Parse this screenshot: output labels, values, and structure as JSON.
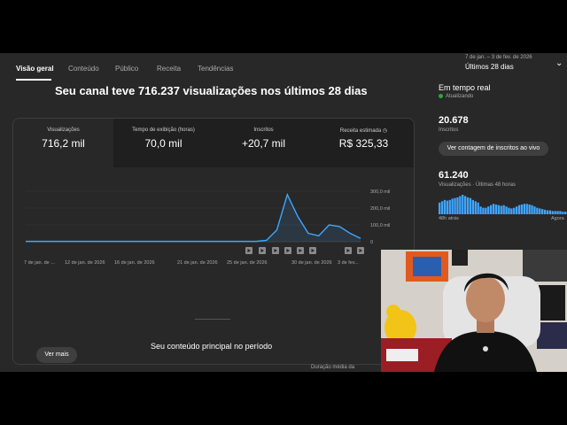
{
  "tabs": [
    {
      "label": "Visão geral",
      "active": true
    },
    {
      "label": "Conteúdo"
    },
    {
      "label": "Público"
    },
    {
      "label": "Receita"
    },
    {
      "label": "Tendências"
    }
  ],
  "date_picker": {
    "range": "7 de jan. – 3 de fev. de 2026",
    "label": "Últimos 28 dias"
  },
  "headline": "Seu canal teve 716.237 visualizações nos últimos 28 dias",
  "metrics": [
    {
      "label": "Visualizações",
      "value": "716,2 mil"
    },
    {
      "label": "Tempo de exibição (horas)",
      "value": "70,0 mil"
    },
    {
      "label": "Inscritos",
      "value": "+20,7 mil"
    },
    {
      "label": "Receita estimada",
      "value": "R$ 325,33"
    }
  ],
  "chart_data": {
    "type": "line",
    "y_ticks": [
      "300,0 mil",
      "200,0 mil",
      "100,0 mil",
      "0"
    ],
    "ylim": [
      0,
      300000
    ],
    "x_tick_labels": [
      "7 de jan. de ...",
      "12 de jan. de 2026",
      "16 de jan. de 2026",
      "21 de jan. de 2026",
      "25 de jan. de 2026",
      "30 de jan. de 2026",
      "3 de fev..."
    ],
    "series": [
      {
        "values": [
          2000,
          2000,
          2000,
          2000,
          2000,
          2000,
          2000,
          2000,
          2000,
          2000,
          2000,
          2000,
          2000,
          2000,
          2000,
          2000,
          2000,
          2000,
          2000,
          2000,
          2000,
          2000,
          2000,
          8000,
          70000,
          280000,
          150000,
          50000,
          35000,
          100000,
          90000,
          50000,
          20000
        ]
      }
    ],
    "color": "#3ea6ff"
  },
  "see_more": "Ver mais",
  "top_content_title": "Seu conteúdo principal no período",
  "avg_duration_label": "Duração média da",
  "realtime": {
    "title": "Em tempo real",
    "status": "Atualizando",
    "subs_value": "20.678",
    "subs_label": "Inscritos",
    "subs_button": "Ver contagem de inscritos ao vivo",
    "views_value": "61.240",
    "views_label": "Visualizações · Últimas 48 horas",
    "ago_label": "48h atrás",
    "now_label": "Agora",
    "bars": [
      18,
      20,
      22,
      21,
      22,
      24,
      25,
      26,
      28,
      30,
      28,
      26,
      25,
      22,
      20,
      18,
      12,
      10,
      10,
      12,
      14,
      16,
      15,
      14,
      13,
      14,
      12,
      10,
      9,
      10,
      12,
      14,
      15,
      16,
      16,
      15,
      14,
      12,
      10,
      9,
      8,
      7,
      6,
      6,
      5,
      5,
      5,
      5,
      4,
      4
    ]
  }
}
